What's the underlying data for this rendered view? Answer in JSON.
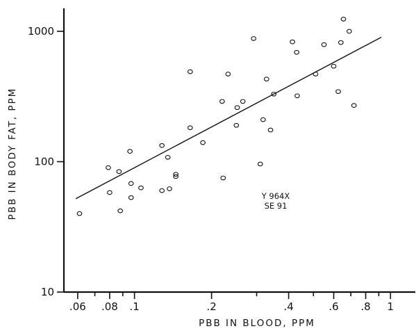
{
  "chart_data": {
    "type": "scatter",
    "title": "",
    "xlabel": "PBB IN BLOOD, PPM",
    "ylabel": "PBB IN BODY FAT, PPM",
    "x_scale": "log",
    "y_scale": "log",
    "xlim": [
      0.053,
      1.25
    ],
    "ylim": [
      10,
      1500
    ],
    "x_tick_labels": [
      {
        "value": 0.06,
        "label": ".06"
      },
      {
        "value": 0.08,
        "label": ".08"
      },
      {
        "value": 0.1,
        "label": ".1"
      },
      {
        "value": 0.2,
        "label": ".2"
      },
      {
        "value": 0.4,
        "label": ".4"
      },
      {
        "value": 0.6,
        "label": ".6"
      },
      {
        "value": 0.8,
        "label": ".8"
      },
      {
        "value": 1,
        "label": "1"
      }
    ],
    "x_minor_ticks": [
      0.07,
      0.09,
      0.3,
      0.5,
      0.7,
      0.9
    ],
    "y_tick_labels": [
      {
        "value": 10,
        "label": "10"
      },
      {
        "value": 100,
        "label": "100"
      },
      {
        "value": 1000,
        "label": "1000"
      }
    ],
    "grid": false,
    "annotations": [
      "Y 964X",
      "SE 91"
    ],
    "fit_line": {
      "x": [
        0.059,
        0.92
      ],
      "y": [
        52,
        900
      ]
    },
    "series": [
      {
        "marker": "open-circle",
        "points": [
          [
            0.061,
            40
          ],
          [
            0.079,
            90
          ],
          [
            0.08,
            58
          ],
          [
            0.087,
            84
          ],
          [
            0.088,
            42
          ],
          [
            0.096,
            120
          ],
          [
            0.097,
            68
          ],
          [
            0.097,
            53
          ],
          [
            0.106,
            63
          ],
          [
            0.128,
            133
          ],
          [
            0.128,
            60
          ],
          [
            0.135,
            108
          ],
          [
            0.137,
            62
          ],
          [
            0.145,
            80
          ],
          [
            0.145,
            77
          ],
          [
            0.165,
            182
          ],
          [
            0.165,
            490
          ],
          [
            0.185,
            140
          ],
          [
            0.22,
            290
          ],
          [
            0.222,
            75
          ],
          [
            0.232,
            470
          ],
          [
            0.25,
            190
          ],
          [
            0.252,
            260
          ],
          [
            0.265,
            290
          ],
          [
            0.292,
            880
          ],
          [
            0.31,
            96
          ],
          [
            0.318,
            210
          ],
          [
            0.328,
            430
          ],
          [
            0.34,
            175
          ],
          [
            0.35,
            330
          ],
          [
            0.414,
            830
          ],
          [
            0.43,
            690
          ],
          [
            0.432,
            320
          ],
          [
            0.51,
            470
          ],
          [
            0.55,
            790
          ],
          [
            0.6,
            540
          ],
          [
            0.625,
            345
          ],
          [
            0.64,
            820
          ],
          [
            0.655,
            1240
          ],
          [
            0.69,
            1000
          ],
          [
            0.72,
            270
          ]
        ]
      }
    ]
  }
}
